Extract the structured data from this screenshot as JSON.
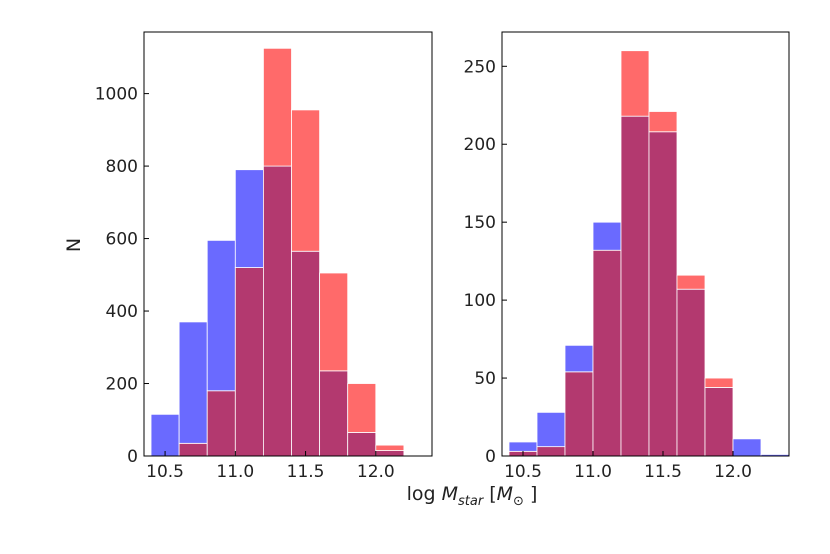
{
  "chart_data": [
    {
      "type": "histogram",
      "id": "left",
      "ylabel": "N",
      "xlim": [
        10.35,
        12.4
      ],
      "ylim": [
        0,
        1170
      ],
      "xticks": [
        10.5,
        11.0,
        11.5,
        12.0
      ],
      "xtick_labels": [
        "10.5",
        "11.0",
        "11.5",
        "12.0"
      ],
      "yticks": [
        0,
        200,
        400,
        600,
        800,
        1000
      ],
      "ytick_labels": [
        "0",
        "200",
        "400",
        "600",
        "800",
        "1000"
      ],
      "bin_edges": [
        10.4,
        10.6,
        10.8,
        11.0,
        11.2,
        11.4,
        11.6,
        11.8,
        12.0,
        12.2
      ],
      "series": [
        {
          "name": "blue",
          "color": "#6a6aff",
          "values": [
            115,
            370,
            595,
            790,
            800,
            565,
            235,
            65,
            15
          ]
        },
        {
          "name": "red",
          "color": "#ff6a6a",
          "values": [
            0,
            35,
            180,
            520,
            1125,
            955,
            505,
            200,
            30
          ]
        }
      ],
      "overlap_color": "#b3396f"
    },
    {
      "type": "histogram",
      "id": "right",
      "ylabel": "",
      "xlim": [
        10.35,
        12.4
      ],
      "ylim": [
        0,
        272
      ],
      "xticks": [
        10.5,
        11.0,
        11.5,
        12.0
      ],
      "xtick_labels": [
        "10.5",
        "11.0",
        "11.5",
        "12.0"
      ],
      "yticks": [
        0,
        50,
        100,
        150,
        200,
        250
      ],
      "ytick_labels": [
        "0",
        "50",
        "100",
        "150",
        "200",
        "250"
      ],
      "bin_edges": [
        10.4,
        10.6,
        10.8,
        11.0,
        11.2,
        11.4,
        11.6,
        11.8,
        12.0,
        12.2,
        12.4
      ],
      "series": [
        {
          "name": "blue",
          "color": "#6a6aff",
          "values": [
            9,
            28,
            71,
            150,
            218,
            208,
            107,
            44,
            11,
            1
          ]
        },
        {
          "name": "red",
          "color": "#ff6a6a",
          "values": [
            3,
            6,
            54,
            132,
            260,
            221,
            116,
            50,
            0,
            0
          ]
        }
      ],
      "overlap_color": "#b3396f"
    }
  ],
  "shared_xlabel": {
    "prefix": "log ",
    "symbol": "M",
    "subscript": "star",
    "bracket_open": " [",
    "unit_symbol": "M",
    "unit_subscript": "⊙",
    "bracket_close": " ]"
  }
}
